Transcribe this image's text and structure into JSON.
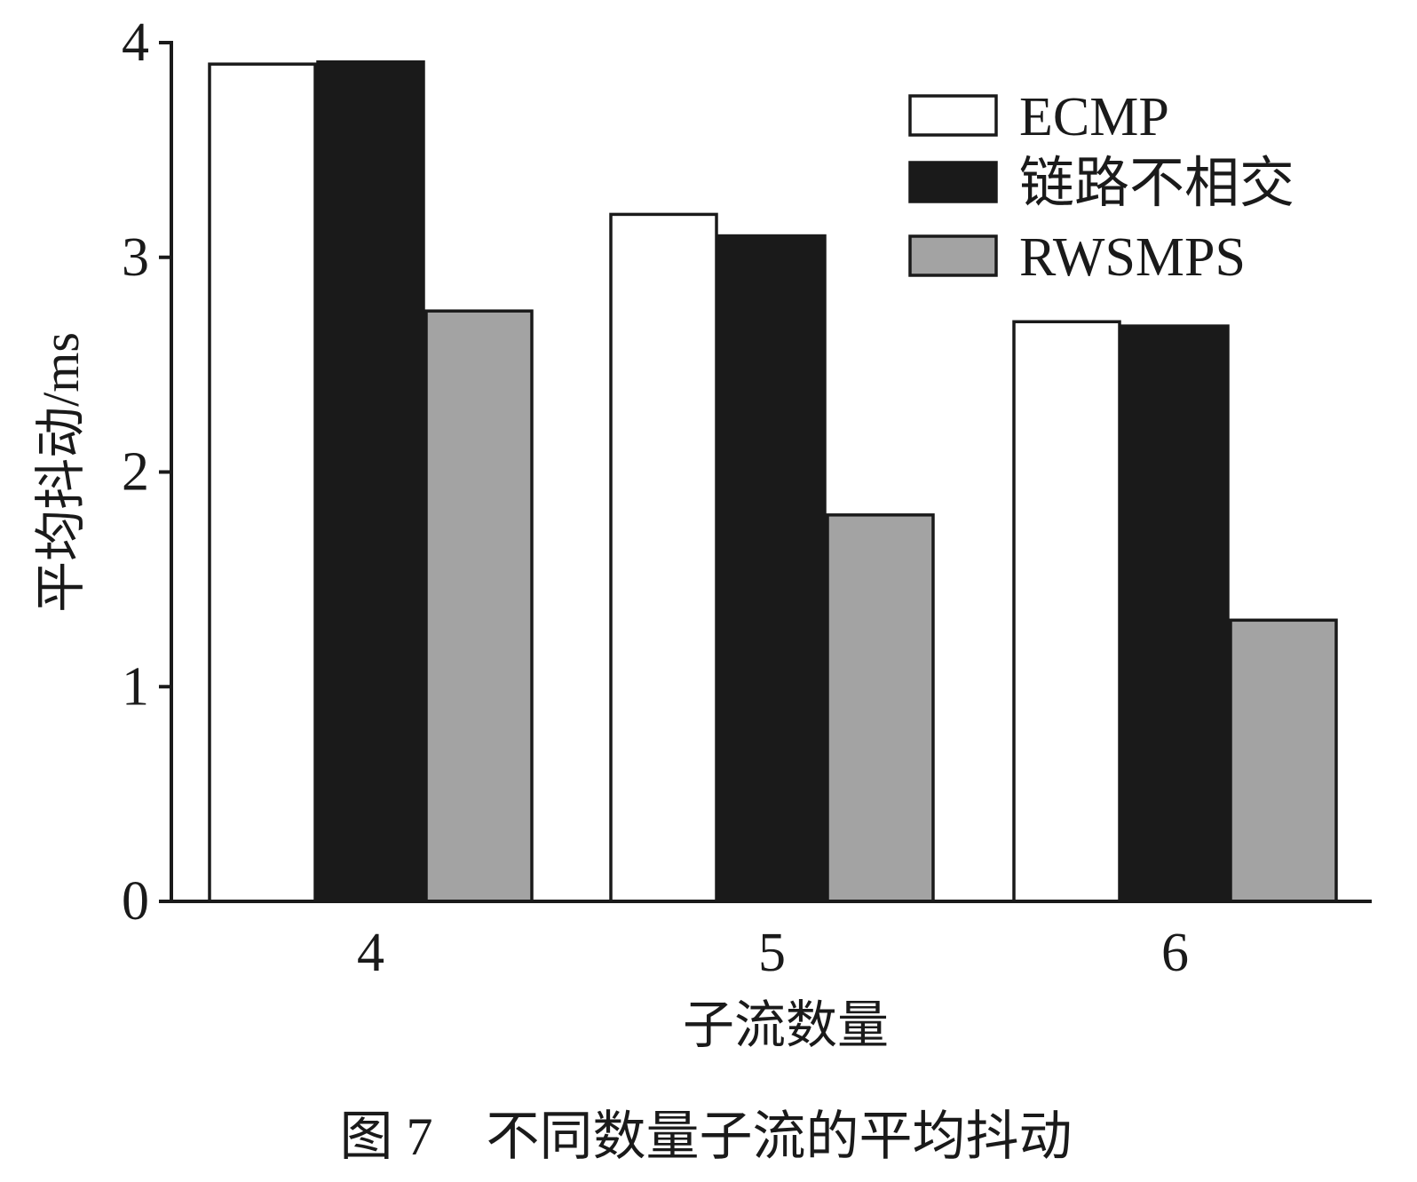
{
  "chart_data": {
    "type": "bar",
    "categories": [
      "4",
      "5",
      "6"
    ],
    "series": [
      {
        "name": "ECMP",
        "values": [
          3.9,
          3.2,
          2.7
        ],
        "color": "#ffffff"
      },
      {
        "name": "链路不相交",
        "values": [
          3.91,
          3.1,
          2.68
        ],
        "color": "#1a1a1a"
      },
      {
        "name": "RWSMPS",
        "values": [
          2.75,
          1.8,
          1.31
        ],
        "color": "#a3a3a3"
      }
    ],
    "xlabel": "子流数量",
    "ylabel": "平均抖动/ms",
    "ylim": [
      0,
      4
    ],
    "yticks": [
      "0",
      "1",
      "2",
      "3",
      "4"
    ],
    "legend_position": "top-right",
    "grid": false
  },
  "caption": "图 7　不同数量子流的平均抖动"
}
